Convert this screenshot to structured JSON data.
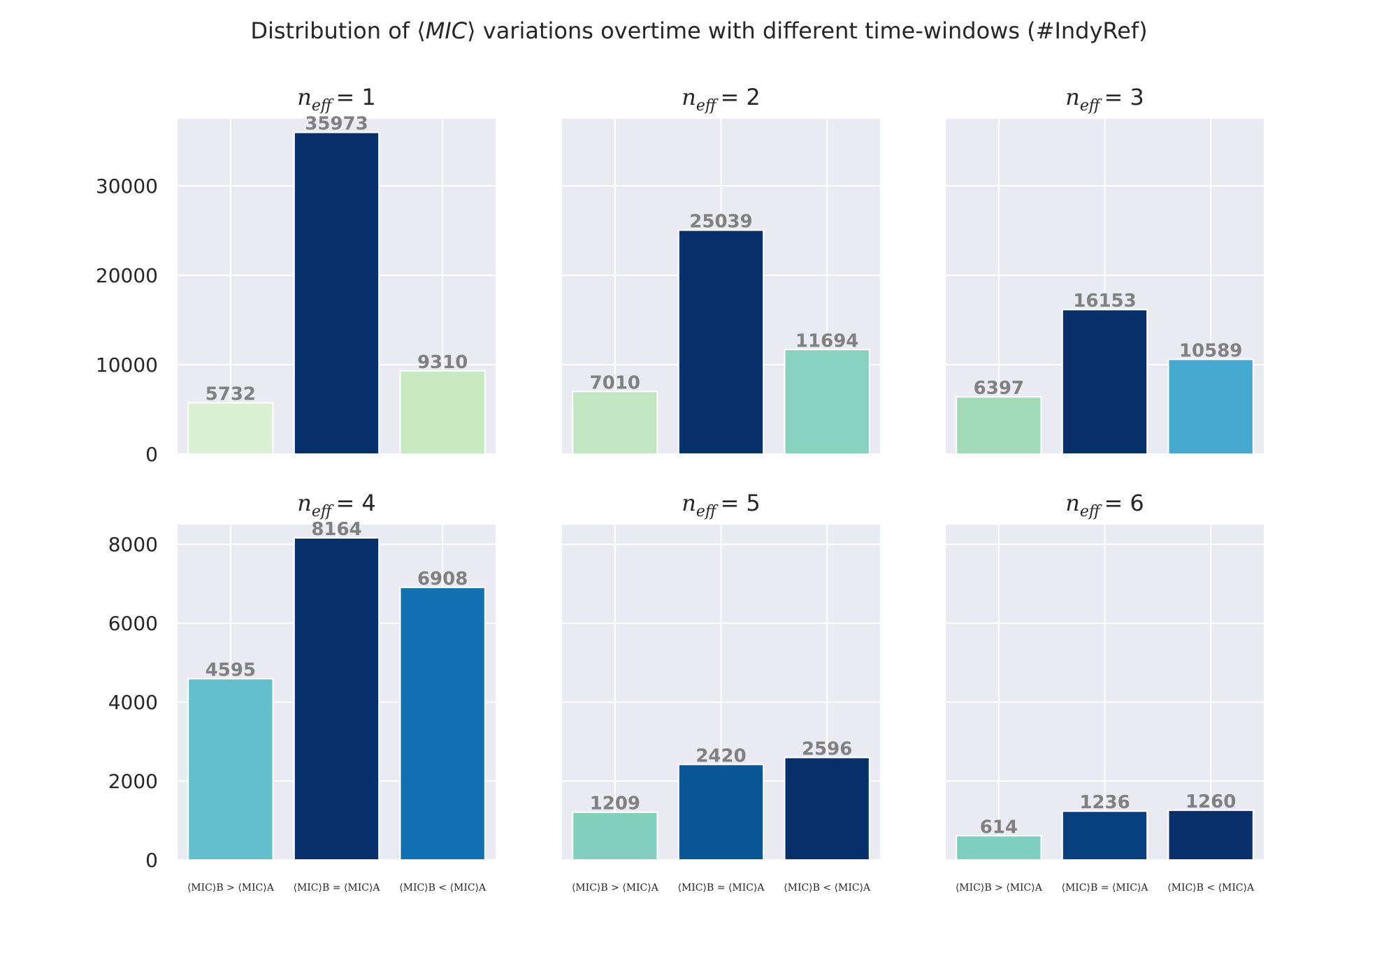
{
  "title": "Distribution of ⟨MIC⟩ variations overtime with different time-windows (#IndyRef)",
  "title_parts": [
    "Distribution of ⟨",
    "MIC",
    "⟩ variations overtime with different time-windows (#IndyRef)"
  ],
  "style": {
    "axes_background": "#eaeaf2",
    "grid_color": "#ffffff",
    "bar_edge": "#ffffff",
    "value_label_color": "#808080"
  },
  "chart_data": [
    {
      "type": "bar",
      "title": "n_eff = 1",
      "title_var": "n",
      "title_sub": "eff",
      "title_val": "= 1",
      "categories": [
        "⟨MIC⟩B > ⟨MIC⟩A",
        "⟨MIC⟩B = ⟨MIC⟩A",
        "⟨MIC⟩B < ⟨MIC⟩A"
      ],
      "values": [
        5732,
        35973,
        9310
      ],
      "colors": [
        "#d9f0d3",
        "#08306b",
        "#c7e9c0"
      ],
      "ylim": [
        0,
        37500
      ],
      "yticks": [
        0,
        10000,
        20000,
        30000
      ]
    },
    {
      "type": "bar",
      "title": "n_eff = 2",
      "title_var": "n",
      "title_sub": "eff",
      "title_val": "= 2",
      "categories": [
        "⟨MIC⟩B > ⟨MIC⟩A",
        "⟨MIC⟩B = ⟨MIC⟩A",
        "⟨MIC⟩B < ⟨MIC⟩A"
      ],
      "values": [
        7010,
        25039,
        11694
      ],
      "colors": [
        "#c2e6c1",
        "#08306b",
        "#88d1bf"
      ],
      "ylim": [
        0,
        37500
      ],
      "yticks": [
        0,
        10000,
        20000,
        30000
      ]
    },
    {
      "type": "bar",
      "title": "n_eff = 3",
      "title_var": "n",
      "title_sub": "eff",
      "title_val": "= 3",
      "categories": [
        "⟨MIC⟩B > ⟨MIC⟩A",
        "⟨MIC⟩B = ⟨MIC⟩A",
        "⟨MIC⟩B < ⟨MIC⟩A"
      ],
      "values": [
        6397,
        16153,
        10589
      ],
      "colors": [
        "#a2dbb8",
        "#08306b",
        "#45a8ce"
      ],
      "ylim": [
        0,
        37500
      ],
      "yticks": [
        0,
        10000,
        20000,
        30000
      ]
    },
    {
      "type": "bar",
      "title": "n_eff = 4",
      "title_var": "n",
      "title_sub": "eff",
      "title_val": "= 4",
      "categories": [
        "⟨MIC⟩B > ⟨MIC⟩A",
        "⟨MIC⟩B = ⟨MIC⟩A",
        "⟨MIC⟩B < ⟨MIC⟩A"
      ],
      "values": [
        4595,
        8164,
        6908
      ],
      "colors": [
        "#64bfcd",
        "#08306b",
        "#1271b2"
      ],
      "ylim": [
        0,
        8500
      ],
      "yticks": [
        0,
        2000,
        4000,
        6000,
        8000
      ]
    },
    {
      "type": "bar",
      "title": "n_eff = 5",
      "title_var": "n",
      "title_sub": "eff",
      "title_val": "= 5",
      "categories": [
        "⟨MIC⟩B > ⟨MIC⟩A",
        "⟨MIC⟩B = ⟨MIC⟩A",
        "⟨MIC⟩B < ⟨MIC⟩A"
      ],
      "values": [
        1209,
        2420,
        2596
      ],
      "colors": [
        "#84d0be",
        "#0a5697",
        "#08306b"
      ],
      "ylim": [
        0,
        8500
      ],
      "yticks": [
        0,
        2000,
        4000,
        6000,
        8000
      ]
    },
    {
      "type": "bar",
      "title": "n_eff = 6",
      "title_var": "n",
      "title_sub": "eff",
      "title_val": "= 6",
      "categories": [
        "⟨MIC⟩B > ⟨MIC⟩A",
        "⟨MIC⟩B = ⟨MIC⟩A",
        "⟨MIC⟩B < ⟨MIC⟩A"
      ],
      "values": [
        614,
        1236,
        1260
      ],
      "colors": [
        "#7fcfbf",
        "#083f7e",
        "#08306b"
      ],
      "ylim": [
        0,
        8500
      ],
      "yticks": [
        0,
        2000,
        4000,
        6000,
        8000
      ]
    }
  ]
}
